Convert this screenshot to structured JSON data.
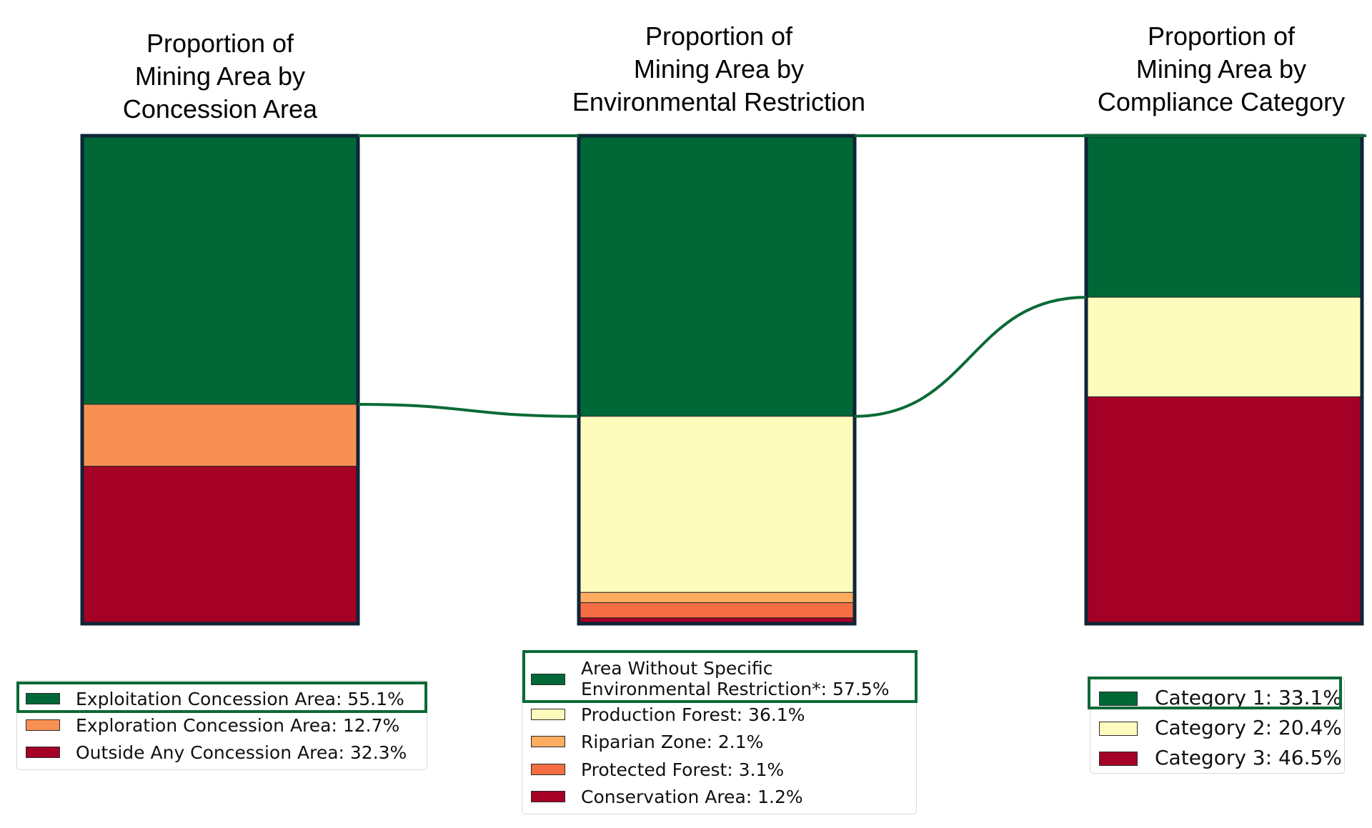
{
  "chart_data": [
    {
      "type": "bar",
      "title": [
        "Proportion of",
        "Mining Area by",
        "Concession Area"
      ],
      "series": [
        {
          "name": "Exploitation Concession Area",
          "value": 55.1,
          "label": "Exploitation Concession Area: 55.1%",
          "color": "#006837",
          "highlight": true
        },
        {
          "name": "Exploration Concession Area",
          "value": 12.7,
          "label": "Exploration Concession Area: 12.7%",
          "color": "#f99053"
        },
        {
          "name": "Outside Any Concession Area",
          "value": 32.3,
          "label": "Outside Any Concession Area: 32.3%",
          "color": "#a50026"
        }
      ]
    },
    {
      "type": "bar",
      "title": [
        "Proportion of",
        "Mining Area by",
        "Environmental Restriction"
      ],
      "series": [
        {
          "name": "Area Without Specific Environmental Restriction*",
          "value": 57.5,
          "label": [
            "Area Without Specific",
            "Environmental Restriction*: 57.5%"
          ],
          "color": "#006837",
          "highlight": true
        },
        {
          "name": "Production Forest",
          "value": 36.1,
          "label": "Production Forest: 36.1%",
          "color": "#fefcbd"
        },
        {
          "name": "Riparian Zone",
          "value": 2.1,
          "label": "Riparian Zone: 2.1%",
          "color": "#fdac60"
        },
        {
          "name": "Protected Forest",
          "value": 3.1,
          "label": "Protected Forest: 3.1%",
          "color": "#f46d43"
        },
        {
          "name": "Conservation Area",
          "value": 1.2,
          "label": "Conservation Area: 1.2%",
          "color": "#a50026"
        }
      ]
    },
    {
      "type": "bar",
      "title": [
        "Proportion of",
        "Mining Area by",
        "Compliance Category"
      ],
      "series": [
        {
          "name": "Category 1",
          "value": 33.1,
          "label": "Category 1: 33.1%",
          "color": "#006837",
          "highlight": true
        },
        {
          "name": "Category 2",
          "value": 20.4,
          "label": "Category 2: 20.4%",
          "color": "#fefcbd"
        },
        {
          "name": "Category 3",
          "value": 46.5,
          "label": "Category 3: 46.5%",
          "color": "#a50026"
        }
      ]
    }
  ],
  "colors": {
    "bar_outline": "#0f2537",
    "connector": "#0b6a36"
  }
}
